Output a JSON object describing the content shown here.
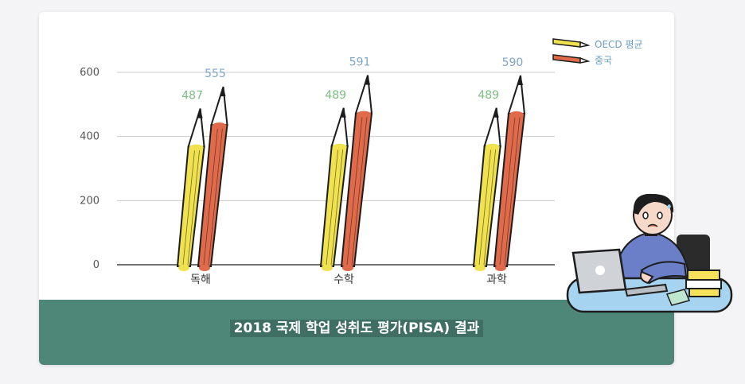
{
  "caption": "2018 국제 학업 성취도 평가(PISA) 결과",
  "chart_data": {
    "type": "bar",
    "categories": [
      "독해",
      "수학",
      "과학"
    ],
    "series": [
      {
        "name": "OECD 평균",
        "values": [
          487,
          489,
          489
        ],
        "color": "#f0e24e",
        "label_color": "#79be83"
      },
      {
        "name": "중국",
        "values": [
          555,
          591,
          590
        ],
        "color": "#e06a4a",
        "label_color": "#7ea6c9"
      }
    ],
    "yticks": [
      0,
      200,
      400,
      600
    ],
    "ylim": [
      0,
      600
    ],
    "grid": true,
    "legend_position": "top-right",
    "mark_style": "pencil"
  },
  "decor": {
    "figure": "person-at-laptop-illustration"
  }
}
